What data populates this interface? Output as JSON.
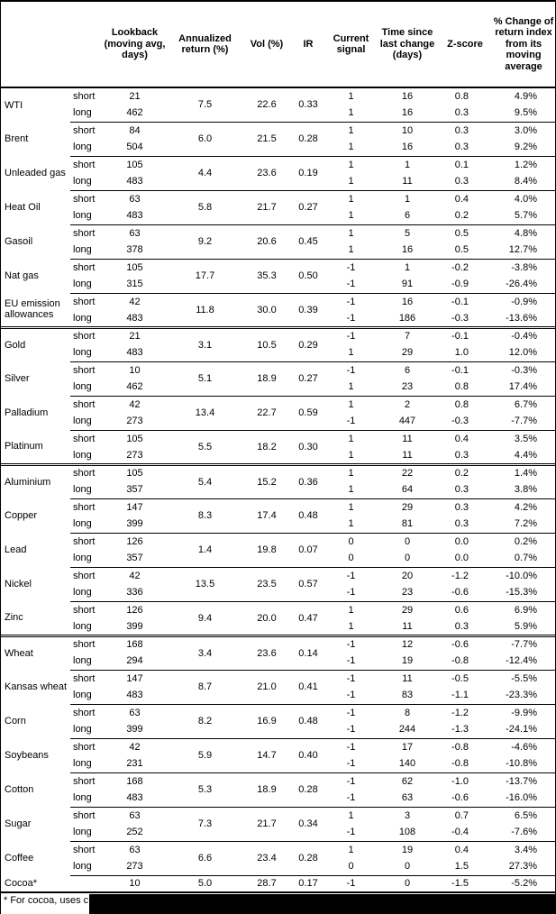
{
  "table": {
    "headers": {
      "name": "",
      "side": "",
      "lookback": "Lookback (moving avg, days)",
      "annualized": "Annualized return (%)",
      "vol": "Vol (%)",
      "ir": "IR",
      "signal": "Current signal",
      "time": "Time since last change (days)",
      "zscore": "Z-score",
      "change": "% Change of return index from its moving average"
    },
    "sections": [
      {
        "name": "energy",
        "commodities": [
          {
            "name": "WTI",
            "annualized": "7.5",
            "vol": "22.6",
            "ir": "0.33",
            "rows": [
              {
                "side": "short",
                "lookback": "21",
                "signal": "1",
                "time": "16",
                "zscore": "0.8",
                "change": "4.9%"
              },
              {
                "side": "long",
                "lookback": "462",
                "signal": "1",
                "time": "16",
                "zscore": "0.3",
                "change": "9.5%"
              }
            ]
          },
          {
            "name": "Brent",
            "annualized": "6.0",
            "vol": "21.5",
            "ir": "0.28",
            "rows": [
              {
                "side": "short",
                "lookback": "84",
                "signal": "1",
                "time": "10",
                "zscore": "0.3",
                "change": "3.0%"
              },
              {
                "side": "long",
                "lookback": "504",
                "signal": "1",
                "time": "16",
                "zscore": "0.3",
                "change": "9.2%"
              }
            ]
          },
          {
            "name": "Unleaded gas",
            "annualized": "4.4",
            "vol": "23.6",
            "ir": "0.19",
            "rows": [
              {
                "side": "short",
                "lookback": "105",
                "signal": "1",
                "time": "1",
                "zscore": "0.1",
                "change": "1.2%"
              },
              {
                "side": "long",
                "lookback": "483",
                "signal": "1",
                "time": "11",
                "zscore": "0.3",
                "change": "8.4%"
              }
            ]
          },
          {
            "name": "Heat Oil",
            "annualized": "5.8",
            "vol": "21.7",
            "ir": "0.27",
            "rows": [
              {
                "side": "short",
                "lookback": "63",
                "signal": "1",
                "time": "1",
                "zscore": "0.4",
                "change": "4.0%"
              },
              {
                "side": "long",
                "lookback": "483",
                "signal": "1",
                "time": "6",
                "zscore": "0.2",
                "change": "5.7%"
              }
            ]
          },
          {
            "name": "Gasoil",
            "annualized": "9.2",
            "vol": "20.6",
            "ir": "0.45",
            "rows": [
              {
                "side": "short",
                "lookback": "63",
                "signal": "1",
                "time": "5",
                "zscore": "0.5",
                "change": "4.8%"
              },
              {
                "side": "long",
                "lookback": "378",
                "signal": "1",
                "time": "16",
                "zscore": "0.5",
                "change": "12.7%"
              }
            ]
          },
          {
            "name": "Nat gas",
            "annualized": "17.7",
            "vol": "35.3",
            "ir": "0.50",
            "rows": [
              {
                "side": "short",
                "lookback": "105",
                "signal": "-1",
                "time": "1",
                "zscore": "-0.2",
                "change": "-3.8%"
              },
              {
                "side": "long",
                "lookback": "315",
                "signal": "-1",
                "time": "91",
                "zscore": "-0.9",
                "change": "-26.4%"
              }
            ]
          },
          {
            "name": "EU emission allowances",
            "annualized": "11.8",
            "vol": "30.0",
            "ir": "0.39",
            "rows": [
              {
                "side": "short",
                "lookback": "42",
                "signal": "-1",
                "time": "16",
                "zscore": "-0.1",
                "change": "-0.9%"
              },
              {
                "side": "long",
                "lookback": "483",
                "signal": "-1",
                "time": "186",
                "zscore": "-0.3",
                "change": "-13.6%"
              }
            ]
          }
        ]
      },
      {
        "name": "precious-metals",
        "commodities": [
          {
            "name": "Gold",
            "annualized": "3.1",
            "vol": "10.5",
            "ir": "0.29",
            "rows": [
              {
                "side": "short",
                "lookback": "21",
                "signal": "-1",
                "time": "7",
                "zscore": "-0.1",
                "change": "-0.4%"
              },
              {
                "side": "long",
                "lookback": "483",
                "signal": "1",
                "time": "29",
                "zscore": "1.0",
                "change": "12.0%"
              }
            ]
          },
          {
            "name": "Silver",
            "annualized": "5.1",
            "vol": "18.9",
            "ir": "0.27",
            "rows": [
              {
                "side": "short",
                "lookback": "10",
                "signal": "-1",
                "time": "6",
                "zscore": "-0.1",
                "change": "-0.3%"
              },
              {
                "side": "long",
                "lookback": "462",
                "signal": "1",
                "time": "23",
                "zscore": "0.8",
                "change": "17.4%"
              }
            ]
          },
          {
            "name": "Palladium",
            "annualized": "13.4",
            "vol": "22.7",
            "ir": "0.59",
            "rows": [
              {
                "side": "short",
                "lookback": "42",
                "signal": "1",
                "time": "2",
                "zscore": "0.8",
                "change": "6.7%"
              },
              {
                "side": "long",
                "lookback": "273",
                "signal": "-1",
                "time": "447",
                "zscore": "-0.3",
                "change": "-7.7%"
              }
            ]
          },
          {
            "name": "Platinum",
            "annualized": "5.5",
            "vol": "18.2",
            "ir": "0.30",
            "rows": [
              {
                "side": "short",
                "lookback": "105",
                "signal": "1",
                "time": "11",
                "zscore": "0.4",
                "change": "3.5%"
              },
              {
                "side": "long",
                "lookback": "273",
                "signal": "1",
                "time": "11",
                "zscore": "0.3",
                "change": "4.4%"
              }
            ]
          }
        ]
      },
      {
        "name": "base-metals",
        "commodities": [
          {
            "name": "Aluminium",
            "annualized": "5.4",
            "vol": "15.2",
            "ir": "0.36",
            "rows": [
              {
                "side": "short",
                "lookback": "105",
                "signal": "1",
                "time": "22",
                "zscore": "0.2",
                "change": "1.4%"
              },
              {
                "side": "long",
                "lookback": "357",
                "signal": "1",
                "time": "64",
                "zscore": "0.3",
                "change": "3.8%"
              }
            ]
          },
          {
            "name": "Copper",
            "annualized": "8.3",
            "vol": "17.4",
            "ir": "0.48",
            "rows": [
              {
                "side": "short",
                "lookback": "147",
                "signal": "1",
                "time": "29",
                "zscore": "0.3",
                "change": "4.2%"
              },
              {
                "side": "long",
                "lookback": "399",
                "signal": "1",
                "time": "81",
                "zscore": "0.3",
                "change": "7.2%"
              }
            ]
          },
          {
            "name": "Lead",
            "annualized": "1.4",
            "vol": "19.8",
            "ir": "0.07",
            "rows": [
              {
                "side": "short",
                "lookback": "126",
                "signal": "0",
                "time": "0",
                "zscore": "0.0",
                "change": "0.2%"
              },
              {
                "side": "long",
                "lookback": "357",
                "signal": "0",
                "time": "0",
                "zscore": "0.0",
                "change": "0.7%"
              }
            ]
          },
          {
            "name": "Nickel",
            "annualized": "13.5",
            "vol": "23.5",
            "ir": "0.57",
            "rows": [
              {
                "side": "short",
                "lookback": "42",
                "signal": "-1",
                "time": "20",
                "zscore": "-1.2",
                "change": "-10.0%"
              },
              {
                "side": "long",
                "lookback": "336",
                "signal": "-1",
                "time": "23",
                "zscore": "-0.6",
                "change": "-15.3%"
              }
            ]
          },
          {
            "name": "Zinc",
            "annualized": "9.4",
            "vol": "20.0",
            "ir": "0.47",
            "rows": [
              {
                "side": "short",
                "lookback": "126",
                "signal": "1",
                "time": "29",
                "zscore": "0.6",
                "change": "6.9%"
              },
              {
                "side": "long",
                "lookback": "399",
                "signal": "1",
                "time": "11",
                "zscore": "0.3",
                "change": "5.9%"
              }
            ]
          }
        ]
      },
      {
        "name": "agriculture",
        "commodities": [
          {
            "name": "Wheat",
            "annualized": "3.4",
            "vol": "23.6",
            "ir": "0.14",
            "rows": [
              {
                "side": "short",
                "lookback": "168",
                "signal": "-1",
                "time": "12",
                "zscore": "-0.6",
                "change": "-7.7%"
              },
              {
                "side": "long",
                "lookback": "294",
                "signal": "-1",
                "time": "19",
                "zscore": "-0.8",
                "change": "-12.4%"
              }
            ]
          },
          {
            "name": "Kansas wheat",
            "annualized": "8.7",
            "vol": "21.0",
            "ir": "0.41",
            "rows": [
              {
                "side": "short",
                "lookback": "147",
                "signal": "-1",
                "time": "11",
                "zscore": "-0.5",
                "change": "-5.5%"
              },
              {
                "side": "long",
                "lookback": "483",
                "signal": "-1",
                "time": "83",
                "zscore": "-1.1",
                "change": "-23.3%"
              }
            ]
          },
          {
            "name": "Corn",
            "annualized": "8.2",
            "vol": "16.9",
            "ir": "0.48",
            "rows": [
              {
                "side": "short",
                "lookback": "63",
                "signal": "-1",
                "time": "8",
                "zscore": "-1.2",
                "change": "-9.9%"
              },
              {
                "side": "long",
                "lookback": "399",
                "signal": "-1",
                "time": "244",
                "zscore": "-1.3",
                "change": "-24.1%"
              }
            ]
          },
          {
            "name": "Soybeans",
            "annualized": "5.9",
            "vol": "14.7",
            "ir": "0.40",
            "rows": [
              {
                "side": "short",
                "lookback": "42",
                "signal": "-1",
                "time": "17",
                "zscore": "-0.8",
                "change": "-4.6%"
              },
              {
                "side": "long",
                "lookback": "231",
                "signal": "-1",
                "time": "140",
                "zscore": "-0.8",
                "change": "-10.8%"
              }
            ]
          },
          {
            "name": "Cotton",
            "annualized": "5.3",
            "vol": "18.9",
            "ir": "0.28",
            "rows": [
              {
                "side": "short",
                "lookback": "168",
                "signal": "-1",
                "time": "62",
                "zscore": "-1.0",
                "change": "-13.7%"
              },
              {
                "side": "long",
                "lookback": "483",
                "signal": "-1",
                "time": "63",
                "zscore": "-0.6",
                "change": "-16.0%"
              }
            ]
          },
          {
            "name": "Sugar",
            "annualized": "7.3",
            "vol": "21.7",
            "ir": "0.34",
            "rows": [
              {
                "side": "short",
                "lookback": "63",
                "signal": "1",
                "time": "3",
                "zscore": "0.7",
                "change": "6.5%"
              },
              {
                "side": "long",
                "lookback": "252",
                "signal": "-1",
                "time": "108",
                "zscore": "-0.4",
                "change": "-7.6%"
              }
            ]
          },
          {
            "name": "Coffee",
            "annualized": "6.6",
            "vol": "23.4",
            "ir": "0.28",
            "rows": [
              {
                "side": "short",
                "lookback": "63",
                "signal": "1",
                "time": "19",
                "zscore": "0.4",
                "change": "3.4%"
              },
              {
                "side": "long",
                "lookback": "273",
                "signal": "0",
                "time": "0",
                "zscore": "1.5",
                "change": "27.3%"
              }
            ]
          },
          {
            "name": "Cocoa*",
            "annualized": "5.0",
            "vol": "28.7",
            "ir": "0.17",
            "rows": [
              {
                "side": "",
                "lookback": "10",
                "signal": "-1",
                "time": "0",
                "zscore": "-1.5",
                "change": "-5.2%"
              }
            ]
          }
        ]
      }
    ]
  },
  "footnote": {
    "visible_text": "* For cocoa, uses c",
    "redacted": true
  }
}
